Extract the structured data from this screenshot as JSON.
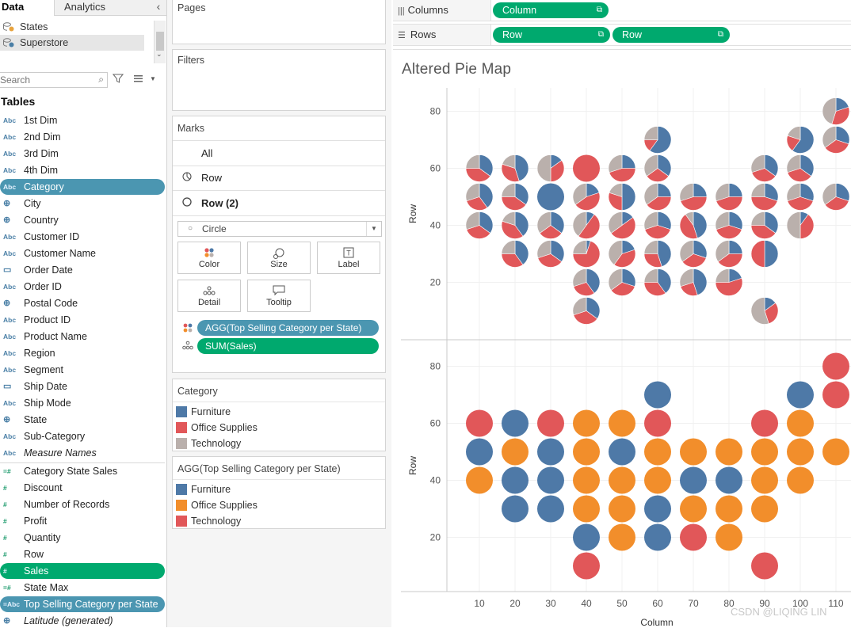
{
  "tabs": {
    "data": "Data",
    "analytics": "Analytics"
  },
  "datasources": [
    "States",
    "Superstore"
  ],
  "search": {
    "placeholder": "Search"
  },
  "tables_heading": "Tables",
  "dimensions": [
    {
      "type": "Abc",
      "name": "1st Dim"
    },
    {
      "type": "Abc",
      "name": "2nd Dim"
    },
    {
      "type": "Abc",
      "name": "3rd Dim"
    },
    {
      "type": "Abc",
      "name": "4th Dim"
    },
    {
      "type": "Abc",
      "name": "Category",
      "highlight": "blue"
    },
    {
      "type": "globe",
      "name": "City"
    },
    {
      "type": "globe",
      "name": "Country"
    },
    {
      "type": "Abc",
      "name": "Customer ID"
    },
    {
      "type": "Abc",
      "name": "Customer Name"
    },
    {
      "type": "date",
      "name": "Order Date"
    },
    {
      "type": "Abc",
      "name": "Order ID"
    },
    {
      "type": "globe",
      "name": "Postal Code"
    },
    {
      "type": "Abc",
      "name": "Product ID"
    },
    {
      "type": "Abc",
      "name": "Product Name"
    },
    {
      "type": "Abc",
      "name": "Region"
    },
    {
      "type": "Abc",
      "name": "Segment"
    },
    {
      "type": "date",
      "name": "Ship Date"
    },
    {
      "type": "Abc",
      "name": "Ship Mode"
    },
    {
      "type": "globe",
      "name": "State"
    },
    {
      "type": "Abc",
      "name": "Sub-Category"
    },
    {
      "type": "Abc",
      "name": "Measure Names",
      "italic": true
    }
  ],
  "measures": [
    {
      "type": "=#",
      "name": "Category State Sales"
    },
    {
      "type": "#",
      "name": "Discount"
    },
    {
      "type": "#",
      "name": "Number of Records"
    },
    {
      "type": "#",
      "name": "Profit"
    },
    {
      "type": "#",
      "name": "Quantity"
    },
    {
      "type": "#",
      "name": "Row"
    },
    {
      "type": "#",
      "name": "Sales",
      "highlight": "green"
    },
    {
      "type": "=#",
      "name": "State Max"
    },
    {
      "type": "=Abc",
      "name": "Top Selling Category per State",
      "highlight": "blue"
    },
    {
      "type": "globe",
      "name": "Latitude (generated)",
      "italic": true
    }
  ],
  "cards": {
    "pages": "Pages",
    "filters": "Filters",
    "marks": "Marks",
    "marks_all": "All",
    "marks_row": "Row",
    "marks_row2": "Row (2)",
    "mark_type": "Circle",
    "buttons": {
      "color": "Color",
      "size": "Size",
      "label": "Label",
      "detail": "Detail",
      "tooltip": "Tooltip"
    },
    "pill_agg": "AGG(Top Selling Category per State)",
    "pill_sum": "SUM(Sales)"
  },
  "legend_category": {
    "title": "Category",
    "items": [
      {
        "label": "Furniture",
        "color": "#4e79a7"
      },
      {
        "label": "Office Supplies",
        "color": "#e15759"
      },
      {
        "label": "Technology",
        "color": "#bab0ac"
      }
    ]
  },
  "legend_agg": {
    "title": "AGG(Top Selling Category per State)",
    "items": [
      {
        "label": "Furniture",
        "color": "#4e79a7"
      },
      {
        "label": "Office Supplies",
        "color": "#f28e2b"
      },
      {
        "label": "Technology",
        "color": "#e15759"
      }
    ]
  },
  "shelves": {
    "columns_label": "Columns",
    "rows_label": "Rows",
    "columns_pills": [
      "Column"
    ],
    "rows_pills": [
      "Row",
      "Row"
    ]
  },
  "chart_data": {
    "type": "scatter",
    "title": "Altered Pie Map",
    "xlabel": "Column",
    "ylabel": "Row",
    "xticks": [
      10,
      20,
      30,
      40,
      50,
      60,
      70,
      80,
      90,
      100,
      110
    ],
    "yticks": [
      20,
      40,
      60,
      80
    ],
    "colors": {
      "Furniture": "#4e79a7",
      "Office Supplies": "#e15759",
      "Technology": "#bab0ac",
      "top_Furniture": "#4e79a7",
      "top_Office Supplies": "#f28e2b",
      "top_Technology": "#e15759"
    },
    "points": [
      {
        "x": 110,
        "y": 80,
        "top": "Technology",
        "pie": [
          0.2,
          0.35,
          0.45
        ]
      },
      {
        "x": 60,
        "y": 70,
        "top": "Furniture",
        "pie": [
          0.6,
          0.15,
          0.25
        ]
      },
      {
        "x": 100,
        "y": 70,
        "top": "Furniture",
        "pie": [
          0.6,
          0.2,
          0.2
        ]
      },
      {
        "x": 110,
        "y": 70,
        "top": "Technology",
        "pie": [
          0.3,
          0.35,
          0.35
        ]
      },
      {
        "x": 10,
        "y": 60,
        "top": "Technology",
        "pie": [
          0.35,
          0.4,
          0.25
        ]
      },
      {
        "x": 20,
        "y": 60,
        "top": "Furniture",
        "pie": [
          0.45,
          0.35,
          0.2
        ]
      },
      {
        "x": 30,
        "y": 60,
        "top": "Technology",
        "pie": [
          0.15,
          0.35,
          0.5
        ]
      },
      {
        "x": 40,
        "y": 60,
        "top": "Office Supplies",
        "pie": [
          0,
          1,
          0
        ]
      },
      {
        "x": 50,
        "y": 60,
        "top": "Office Supplies",
        "pie": [
          0.25,
          0.45,
          0.3
        ]
      },
      {
        "x": 60,
        "y": 60,
        "top": "Technology",
        "pie": [
          0.35,
          0.3,
          0.35
        ]
      },
      {
        "x": 90,
        "y": 60,
        "top": "Technology",
        "pie": [
          0.35,
          0.35,
          0.3
        ]
      },
      {
        "x": 100,
        "y": 60,
        "top": "Office Supplies",
        "pie": [
          0.35,
          0.35,
          0.3
        ]
      },
      {
        "x": 10,
        "y": 50,
        "top": "Furniture",
        "pie": [
          0.4,
          0.3,
          0.3
        ]
      },
      {
        "x": 20,
        "y": 50,
        "top": "Office Supplies",
        "pie": [
          0.35,
          0.4,
          0.25
        ]
      },
      {
        "x": 30,
        "y": 50,
        "top": "Furniture",
        "pie": [
          1,
          0,
          0
        ]
      },
      {
        "x": 40,
        "y": 50,
        "top": "Office Supplies",
        "pie": [
          0.2,
          0.45,
          0.35
        ]
      },
      {
        "x": 50,
        "y": 50,
        "top": "Furniture",
        "pie": [
          0.5,
          0.3,
          0.2
        ]
      },
      {
        "x": 60,
        "y": 50,
        "top": "Office Supplies",
        "pie": [
          0.25,
          0.4,
          0.35
        ]
      },
      {
        "x": 70,
        "y": 50,
        "top": "Office Supplies",
        "pie": [
          0.25,
          0.45,
          0.3
        ]
      },
      {
        "x": 80,
        "y": 50,
        "top": "Office Supplies",
        "pie": [
          0.25,
          0.45,
          0.3
        ]
      },
      {
        "x": 90,
        "y": 50,
        "top": "Office Supplies",
        "pie": [
          0.3,
          0.45,
          0.25
        ]
      },
      {
        "x": 100,
        "y": 50,
        "top": "Office Supplies",
        "pie": [
          0.3,
          0.4,
          0.3
        ]
      },
      {
        "x": 110,
        "y": 50,
        "top": "Office Supplies",
        "pie": [
          0.3,
          0.35,
          0.35
        ]
      },
      {
        "x": 10,
        "y": 40,
        "top": "Office Supplies",
        "pie": [
          0.35,
          0.35,
          0.3
        ]
      },
      {
        "x": 20,
        "y": 40,
        "top": "Furniture",
        "pie": [
          0.4,
          0.4,
          0.2
        ]
      },
      {
        "x": 30,
        "y": 40,
        "top": "Furniture",
        "pie": [
          0.35,
          0.3,
          0.35
        ]
      },
      {
        "x": 40,
        "y": 40,
        "top": "Office Supplies",
        "pie": [
          0.1,
          0.5,
          0.4
        ]
      },
      {
        "x": 50,
        "y": 40,
        "top": "Office Supplies",
        "pie": [
          0.15,
          0.5,
          0.35
        ]
      },
      {
        "x": 60,
        "y": 40,
        "top": "Office Supplies",
        "pie": [
          0.3,
          0.4,
          0.3
        ]
      },
      {
        "x": 70,
        "y": 40,
        "top": "Furniture",
        "pie": [
          0.45,
          0.45,
          0.1
        ]
      },
      {
        "x": 80,
        "y": 40,
        "top": "Furniture",
        "pie": [
          0.3,
          0.4,
          0.3
        ]
      },
      {
        "x": 90,
        "y": 40,
        "top": "Office Supplies",
        "pie": [
          0.35,
          0.4,
          0.25
        ]
      },
      {
        "x": 100,
        "y": 40,
        "top": "Office Supplies",
        "pie": [
          0.1,
          0.4,
          0.5
        ]
      },
      {
        "x": 20,
        "y": 30,
        "top": "Furniture",
        "pie": [
          0.4,
          0.35,
          0.25
        ]
      },
      {
        "x": 30,
        "y": 30,
        "top": "Furniture",
        "pie": [
          0.35,
          0.35,
          0.3
        ]
      },
      {
        "x": 40,
        "y": 30,
        "top": "Office Supplies",
        "pie": [
          0.05,
          0.7,
          0.25
        ]
      },
      {
        "x": 50,
        "y": 30,
        "top": "Office Supplies",
        "pie": [
          0.2,
          0.4,
          0.4
        ]
      },
      {
        "x": 60,
        "y": 30,
        "top": "Furniture",
        "pie": [
          0.45,
          0.3,
          0.25
        ]
      },
      {
        "x": 70,
        "y": 30,
        "top": "Office Supplies",
        "pie": [
          0.3,
          0.35,
          0.35
        ]
      },
      {
        "x": 80,
        "y": 30,
        "top": "Office Supplies",
        "pie": [
          0.25,
          0.4,
          0.35
        ]
      },
      {
        "x": 90,
        "y": 30,
        "top": "Office Supplies",
        "pie": [
          0.5,
          0.5,
          0
        ]
      },
      {
        "x": 40,
        "y": 20,
        "top": "Furniture",
        "pie": [
          0.4,
          0.3,
          0.3
        ]
      },
      {
        "x": 50,
        "y": 20,
        "top": "Office Supplies",
        "pie": [
          0.3,
          0.35,
          0.35
        ]
      },
      {
        "x": 60,
        "y": 20,
        "top": "Furniture",
        "pie": [
          0.4,
          0.35,
          0.25
        ]
      },
      {
        "x": 70,
        "y": 20,
        "top": "Technology",
        "pie": [
          0.45,
          0.25,
          0.3
        ]
      },
      {
        "x": 80,
        "y": 20,
        "top": "Office Supplies",
        "pie": [
          0.2,
          0.55,
          0.25
        ]
      },
      {
        "x": 40,
        "y": 10,
        "top": "Technology",
        "pie": [
          0.35,
          0.35,
          0.3
        ]
      },
      {
        "x": 90,
        "y": 10,
        "top": "Technology",
        "pie": [
          0.15,
          0.3,
          0.55
        ]
      }
    ]
  },
  "watermark": "CSDN @LIQING LIN"
}
